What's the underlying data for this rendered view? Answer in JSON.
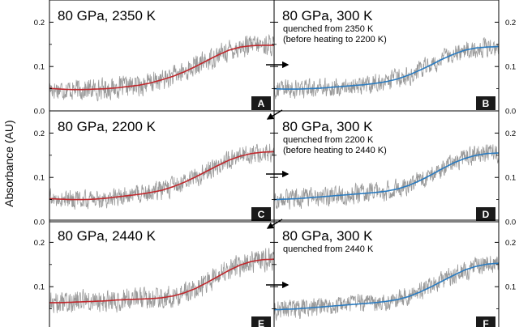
{
  "figure": {
    "ylabel": "Absorbance (AU)",
    "colors": {
      "raw": "#9a9a9a",
      "fit_heated": "#c0282d",
      "fit_quenched": "#2a7bc0",
      "frame": "#000000"
    }
  },
  "chart_data": [
    {
      "type": "line",
      "panel": "A",
      "title": "80 GPa, 2350 K",
      "note": [],
      "ylim": [
        0.0,
        0.25
      ],
      "yticks": [
        0.0,
        0.1,
        0.2
      ],
      "ytick_labels": [
        "0.0",
        "0.1",
        "0.2"
      ],
      "tick_side": "left",
      "x": [
        0,
        0.05,
        0.1,
        0.15,
        0.2,
        0.25,
        0.3,
        0.35,
        0.4,
        0.45,
        0.5,
        0.55,
        0.6,
        0.65,
        0.7,
        0.75,
        0.8,
        0.85,
        0.9,
        0.95,
        1.0
      ],
      "series": [
        {
          "kind": "fit",
          "values": [
            0.051,
            0.049,
            0.048,
            0.048,
            0.049,
            0.05,
            0.052,
            0.055,
            0.058,
            0.063,
            0.07,
            0.078,
            0.088,
            0.1,
            0.113,
            0.126,
            0.137,
            0.144,
            0.147,
            0.148,
            0.148
          ]
        },
        {
          "kind": "raw",
          "noise": 0.022
        }
      ]
    },
    {
      "type": "line",
      "panel": "B",
      "title": "80 GPa, 300 K",
      "note": [
        "quenched from 2350 K",
        "(before heating to 2200 K)"
      ],
      "ylim": [
        0.0,
        0.25
      ],
      "yticks": [
        0.0,
        0.1,
        0.2
      ],
      "ytick_labels": [
        "0.0",
        "0.1",
        "0.2"
      ],
      "tick_side": "right",
      "x": [
        0,
        0.05,
        0.1,
        0.15,
        0.2,
        0.25,
        0.3,
        0.35,
        0.4,
        0.45,
        0.5,
        0.55,
        0.6,
        0.65,
        0.7,
        0.75,
        0.8,
        0.85,
        0.9,
        0.95,
        1.0
      ],
      "series": [
        {
          "kind": "fit",
          "values": [
            0.05,
            0.049,
            0.049,
            0.05,
            0.051,
            0.053,
            0.055,
            0.057,
            0.059,
            0.062,
            0.066,
            0.072,
            0.081,
            0.092,
            0.104,
            0.117,
            0.128,
            0.137,
            0.142,
            0.144,
            0.145
          ]
        },
        {
          "kind": "raw",
          "noise": 0.02
        }
      ]
    },
    {
      "type": "line",
      "panel": "C",
      "title": "80 GPa, 2200 K",
      "note": [],
      "ylim": [
        0.0,
        0.25
      ],
      "yticks": [
        0.0,
        0.1,
        0.2
      ],
      "ytick_labels": [
        "0.0",
        "0.1",
        "0.2"
      ],
      "tick_side": "left",
      "x": [
        0,
        0.05,
        0.1,
        0.15,
        0.2,
        0.25,
        0.3,
        0.35,
        0.4,
        0.45,
        0.5,
        0.55,
        0.6,
        0.65,
        0.7,
        0.75,
        0.8,
        0.85,
        0.9,
        0.95,
        1.0
      ],
      "series": [
        {
          "kind": "fit",
          "values": [
            0.052,
            0.051,
            0.05,
            0.05,
            0.051,
            0.053,
            0.056,
            0.059,
            0.062,
            0.066,
            0.071,
            0.079,
            0.089,
            0.101,
            0.114,
            0.127,
            0.139,
            0.148,
            0.154,
            0.157,
            0.158
          ]
        },
        {
          "kind": "raw",
          "noise": 0.02
        }
      ]
    },
    {
      "type": "line",
      "panel": "D",
      "title": "80 GPa, 300 K",
      "note": [
        "quenched from 2200 K",
        "(before heating to 2440 K)"
      ],
      "ylim": [
        0.0,
        0.25
      ],
      "yticks": [
        0.0,
        0.1,
        0.2
      ],
      "ytick_labels": [
        "0.0",
        "0.1",
        "0.2"
      ],
      "tick_side": "right",
      "x": [
        0,
        0.05,
        0.1,
        0.15,
        0.2,
        0.25,
        0.3,
        0.35,
        0.4,
        0.45,
        0.5,
        0.55,
        0.6,
        0.65,
        0.7,
        0.75,
        0.8,
        0.85,
        0.9,
        0.95,
        1.0
      ],
      "series": [
        {
          "kind": "fit",
          "values": [
            0.05,
            0.051,
            0.052,
            0.054,
            0.056,
            0.058,
            0.06,
            0.062,
            0.064,
            0.066,
            0.069,
            0.074,
            0.082,
            0.093,
            0.106,
            0.12,
            0.133,
            0.143,
            0.15,
            0.154,
            0.155
          ]
        },
        {
          "kind": "raw",
          "noise": 0.02
        }
      ]
    },
    {
      "type": "line",
      "panel": "E",
      "title": "80 GPa, 2440 K",
      "note": [],
      "ylim": [
        0.0,
        0.25
      ],
      "yticks": [
        0.1,
        0.2
      ],
      "ytick_labels": [
        "0.1",
        "0.2"
      ],
      "tick_side": "left",
      "x": [
        0,
        0.05,
        0.1,
        0.15,
        0.2,
        0.25,
        0.3,
        0.35,
        0.4,
        0.45,
        0.5,
        0.55,
        0.6,
        0.65,
        0.7,
        0.75,
        0.8,
        0.85,
        0.9,
        0.95,
        1.0
      ],
      "series": [
        {
          "kind": "fit",
          "values": [
            0.064,
            0.064,
            0.065,
            0.066,
            0.067,
            0.068,
            0.07,
            0.071,
            0.072,
            0.073,
            0.075,
            0.079,
            0.086,
            0.096,
            0.109,
            0.123,
            0.137,
            0.149,
            0.157,
            0.161,
            0.162
          ]
        },
        {
          "kind": "raw",
          "noise": 0.024
        }
      ]
    },
    {
      "type": "line",
      "panel": "F",
      "title": "80 GPa, 300 K",
      "note": [
        "quenched from 2440 K"
      ],
      "ylim": [
        0.0,
        0.25
      ],
      "yticks": [
        0.1,
        0.2
      ],
      "ytick_labels": [
        "0.1",
        "0.2"
      ],
      "tick_side": "right",
      "x": [
        0,
        0.05,
        0.1,
        0.15,
        0.2,
        0.25,
        0.3,
        0.35,
        0.4,
        0.45,
        0.5,
        0.55,
        0.6,
        0.65,
        0.7,
        0.75,
        0.8,
        0.85,
        0.9,
        0.95,
        1.0
      ],
      "series": [
        {
          "kind": "fit",
          "values": [
            0.048,
            0.049,
            0.05,
            0.052,
            0.054,
            0.056,
            0.058,
            0.06,
            0.062,
            0.064,
            0.067,
            0.071,
            0.078,
            0.088,
            0.1,
            0.113,
            0.126,
            0.138,
            0.146,
            0.151,
            0.153
          ]
        },
        {
          "kind": "raw",
          "noise": 0.02
        }
      ]
    }
  ]
}
